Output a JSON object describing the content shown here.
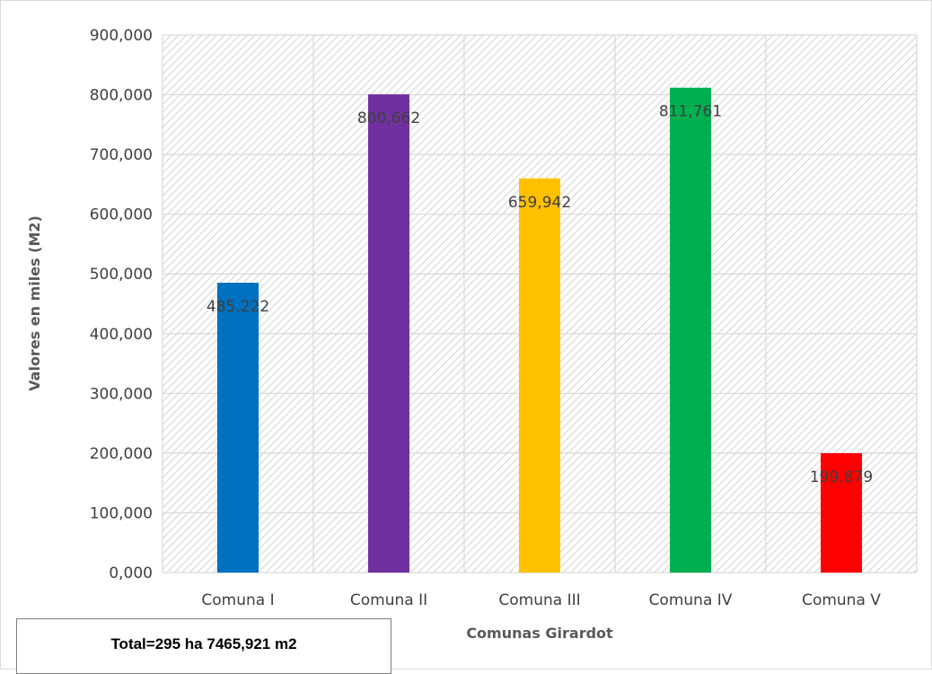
{
  "chart_data": {
    "type": "bar",
    "categories": [
      "Comuna I",
      "Comuna II",
      "Comuna III",
      "Comuna IV",
      "Comuna V"
    ],
    "values": [
      485.222,
      800.662,
      659.942,
      811.761,
      199.879
    ],
    "value_labels": [
      "485,222",
      "800,662",
      "659,942",
      "811,761",
      "199,879"
    ],
    "bar_colors": [
      "#0070c0",
      "#7030a0",
      "#ffc000",
      "#00b050",
      "#ff0000"
    ],
    "xlabel": "Comunas Girardot",
    "ylabel": "Valores en miles (M2)",
    "ylim": [
      0,
      900
    ],
    "yticks": [
      0,
      100,
      200,
      300,
      400,
      500,
      600,
      700,
      800,
      900
    ],
    "ytick_labels": [
      "0,000",
      "100,000",
      "200,000",
      "300,000",
      "400,000",
      "500,000",
      "600,000",
      "700,000",
      "800,000",
      "900,000"
    ],
    "grid": true,
    "plot_background": "hatched-gray",
    "legend": "none"
  },
  "annotation": {
    "total_text": "Total=295 ha 7465,921 m2"
  }
}
